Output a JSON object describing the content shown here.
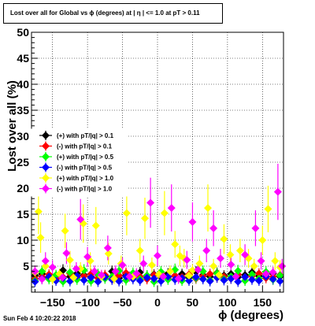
{
  "header": {
    "title": "Lost over all for Global vs ϕ (degrees) at | η | <= 1.0 at pT > 0.11"
  },
  "footer": {
    "timestamp": "Sun Feb  4 10:20:22 2018"
  },
  "chart_data": {
    "type": "scatter",
    "title": "Lost over all for Global vs ϕ (degrees) at | η | <= 1.0 at pT > 0.11",
    "xlabel": "ϕ (degrees)",
    "ylabel": "Lost over all (%)",
    "xlim": [
      -180,
      180
    ],
    "ylim": [
      0,
      50
    ],
    "xticks": [
      -150,
      -100,
      -50,
      0,
      50,
      100,
      150
    ],
    "xtick_labels": [
      "−150",
      "−100",
      "−50",
      "0",
      "50",
      "100",
      "150"
    ],
    "yticks": [
      5,
      10,
      15,
      20,
      25,
      30,
      35,
      40,
      45,
      50
    ],
    "grid": true,
    "legend_position": "left-middle",
    "series": [
      {
        "name": "(+) with pT/|q| > 0.1",
        "color": "#000000",
        "marker": "diamond",
        "points": [
          [
            -175,
            3.2
          ],
          [
            -165,
            3.5
          ],
          [
            -155,
            2.8
          ],
          [
            -145,
            3.1
          ],
          [
            -135,
            4.2
          ],
          [
            -125,
            3.0
          ],
          [
            -115,
            3.6
          ],
          [
            -105,
            3.3
          ],
          [
            -95,
            2.9
          ],
          [
            -85,
            3.4
          ],
          [
            -75,
            3.1
          ],
          [
            -65,
            4.0
          ],
          [
            -55,
            2.7
          ],
          [
            -45,
            3.3
          ],
          [
            -35,
            3.0
          ],
          [
            -25,
            3.8
          ],
          [
            -15,
            3.2
          ],
          [
            -5,
            3.4
          ],
          [
            5,
            2.9
          ],
          [
            15,
            3.6
          ],
          [
            25,
            3.1
          ],
          [
            35,
            3.5
          ],
          [
            45,
            2.8
          ],
          [
            55,
            3.9
          ],
          [
            65,
            3.3
          ],
          [
            75,
            3.0
          ],
          [
            85,
            3.7
          ],
          [
            95,
            3.2
          ],
          [
            105,
            3.5
          ],
          [
            115,
            2.9
          ],
          [
            125,
            3.3
          ],
          [
            135,
            3.8
          ],
          [
            145,
            3.1
          ],
          [
            155,
            3.4
          ],
          [
            165,
            3.6
          ],
          [
            175,
            3.0
          ]
        ]
      },
      {
        "name": "(-) with pT/|q| > 0.1",
        "color": "#ff0000",
        "marker": "diamond",
        "points": [
          [
            -175,
            2.6
          ],
          [
            -165,
            3.0
          ],
          [
            -155,
            3.4
          ],
          [
            -145,
            2.5
          ],
          [
            -135,
            2.9
          ],
          [
            -125,
            3.6
          ],
          [
            -115,
            2.8
          ],
          [
            -105,
            3.1
          ],
          [
            -95,
            3.5
          ],
          [
            -85,
            2.7
          ],
          [
            -75,
            3.3
          ],
          [
            -65,
            2.6
          ],
          [
            -55,
            3.2
          ],
          [
            -45,
            3.7
          ],
          [
            -35,
            2.8
          ],
          [
            -25,
            3.0
          ],
          [
            -15,
            2.5
          ],
          [
            -5,
            3.3
          ],
          [
            5,
            3.6
          ],
          [
            15,
            2.7
          ],
          [
            25,
            3.2
          ],
          [
            35,
            2.9
          ],
          [
            45,
            3.4
          ],
          [
            55,
            2.6
          ],
          [
            65,
            3.1
          ],
          [
            75,
            3.5
          ],
          [
            85,
            2.8
          ],
          [
            95,
            3.0
          ],
          [
            105,
            2.6
          ],
          [
            115,
            3.4
          ],
          [
            125,
            2.9
          ],
          [
            135,
            3.1
          ],
          [
            145,
            3.6
          ],
          [
            155,
            2.7
          ],
          [
            165,
            3.0
          ],
          [
            175,
            3.3
          ]
        ]
      },
      {
        "name": "(+) with pT/|q| > 0.5",
        "color": "#00ff00",
        "marker": "diamond",
        "points": [
          [
            -175,
            2.2
          ],
          [
            -165,
            4.0
          ],
          [
            -155,
            2.5
          ],
          [
            -145,
            3.3
          ],
          [
            -135,
            2.0
          ],
          [
            -125,
            3.8
          ],
          [
            -115,
            2.4
          ],
          [
            -105,
            4.2
          ],
          [
            -95,
            2.1
          ],
          [
            -85,
            3.5
          ],
          [
            -75,
            2.6
          ],
          [
            -65,
            3.0
          ],
          [
            -55,
            4.1
          ],
          [
            -45,
            2.3
          ],
          [
            -35,
            3.7
          ],
          [
            -25,
            2.5
          ],
          [
            -15,
            3.2
          ],
          [
            -5,
            2.0
          ],
          [
            5,
            3.9
          ],
          [
            15,
            2.4
          ],
          [
            25,
            4.3
          ],
          [
            35,
            2.2
          ],
          [
            45,
            3.1
          ],
          [
            55,
            2.7
          ],
          [
            65,
            4.0
          ],
          [
            75,
            2.3
          ],
          [
            85,
            3.6
          ],
          [
            95,
            2.5
          ],
          [
            105,
            3.0
          ],
          [
            115,
            4.1
          ],
          [
            125,
            2.2
          ],
          [
            135,
            3.4
          ],
          [
            145,
            2.6
          ],
          [
            155,
            3.9
          ],
          [
            165,
            2.4
          ],
          [
            175,
            3.2
          ]
        ]
      },
      {
        "name": "(-) with pT/|q| > 0.5",
        "color": "#0000ff",
        "marker": "diamond",
        "points": [
          [
            -175,
            2.0
          ],
          [
            -165,
            2.6
          ],
          [
            -155,
            3.0
          ],
          [
            -145,
            2.2
          ],
          [
            -135,
            2.7
          ],
          [
            -125,
            2.1
          ],
          [
            -115,
            3.1
          ],
          [
            -105,
            2.3
          ],
          [
            -95,
            2.8
          ],
          [
            -85,
            2.0
          ],
          [
            -75,
            2.9
          ],
          [
            -65,
            2.4
          ],
          [
            -55,
            2.1
          ],
          [
            -45,
            3.0
          ],
          [
            -35,
            2.5
          ],
          [
            -25,
            2.2
          ],
          [
            -15,
            2.8
          ],
          [
            -5,
            2.6
          ],
          [
            5,
            2.1
          ],
          [
            15,
            3.0
          ],
          [
            25,
            2.4
          ],
          [
            35,
            2.7
          ],
          [
            45,
            2.2
          ],
          [
            55,
            2.9
          ],
          [
            65,
            2.5
          ],
          [
            75,
            2.1
          ],
          [
            85,
            2.8
          ],
          [
            95,
            2.3
          ],
          [
            105,
            2.6
          ],
          [
            115,
            2.0
          ],
          [
            125,
            2.9
          ],
          [
            135,
            2.4
          ],
          [
            145,
            2.2
          ],
          [
            155,
            3.0
          ],
          [
            165,
            2.5
          ],
          [
            175,
            2.1
          ]
        ]
      },
      {
        "name": "(+) with pT/|q| > 1.0",
        "color": "#ffff00",
        "marker": "diamond",
        "points": [
          [
            -175,
            3.8
          ],
          [
            -170,
            15.5
          ],
          [
            -167,
            10.5
          ],
          [
            -160,
            5.0
          ],
          [
            -150,
            2.5
          ],
          [
            -140,
            3.5
          ],
          [
            -132,
            11.8
          ],
          [
            -125,
            6.2
          ],
          [
            -120,
            2.8
          ],
          [
            -110,
            4.5
          ],
          [
            -106,
            13.2
          ],
          [
            -96,
            6.0
          ],
          [
            -88,
            12.8
          ],
          [
            -80,
            3.0
          ],
          [
            -70,
            7.4
          ],
          [
            -62,
            2.6
          ],
          [
            -52,
            5.5
          ],
          [
            -44,
            15.2
          ],
          [
            -35,
            3.0
          ],
          [
            -25,
            8.0
          ],
          [
            -18,
            14.2
          ],
          [
            -8,
            5.2
          ],
          [
            2,
            3.4
          ],
          [
            10,
            15.2
          ],
          [
            18,
            4.0
          ],
          [
            25,
            9.2
          ],
          [
            32,
            7.0
          ],
          [
            38,
            6.5
          ],
          [
            45,
            3.2
          ],
          [
            50,
            4.2
          ],
          [
            60,
            5.5
          ],
          [
            72,
            16.2
          ],
          [
            80,
            5.0
          ],
          [
            88,
            3.3
          ],
          [
            95,
            10.2
          ],
          [
            104,
            7.2
          ],
          [
            118,
            8.0
          ],
          [
            130,
            6.5
          ],
          [
            138,
            5.0
          ],
          [
            150,
            10.0
          ],
          [
            158,
            16.0
          ],
          [
            168,
            6.0
          ],
          [
            175,
            4.8
          ]
        ]
      },
      {
        "name": "(-) with pT/|q| > 1.0",
        "color": "#ff00ff",
        "marker": "diamond",
        "points": [
          [
            -175,
            4.0
          ],
          [
            -165,
            2.5
          ],
          [
            -160,
            6.0
          ],
          [
            -150,
            4.8
          ],
          [
            -136,
            2.8
          ],
          [
            -130,
            7.5
          ],
          [
            -116,
            4.5
          ],
          [
            -110,
            14.0
          ],
          [
            -100,
            6.8
          ],
          [
            -90,
            4.0
          ],
          [
            -80,
            3.3
          ],
          [
            -71,
            8.5
          ],
          [
            -60,
            4.0
          ],
          [
            -50,
            5.2
          ],
          [
            -40,
            3.0
          ],
          [
            -30,
            3.6
          ],
          [
            -20,
            5.5
          ],
          [
            -10,
            17.2
          ],
          [
            0,
            7.0
          ],
          [
            8,
            3.0
          ],
          [
            20,
            16.2
          ],
          [
            30,
            2.6
          ],
          [
            42,
            6.2
          ],
          [
            50,
            13.5
          ],
          [
            58,
            4.3
          ],
          [
            70,
            8.0
          ],
          [
            80,
            12.3
          ],
          [
            90,
            6.5
          ],
          [
            105,
            5.3
          ],
          [
            112,
            3.0
          ],
          [
            125,
            7.2
          ],
          [
            140,
            12.3
          ],
          [
            148,
            6.0
          ],
          [
            155,
            3.5
          ],
          [
            165,
            3.8
          ],
          [
            172,
            19.3
          ],
          [
            178,
            5.0
          ]
        ]
      }
    ]
  }
}
